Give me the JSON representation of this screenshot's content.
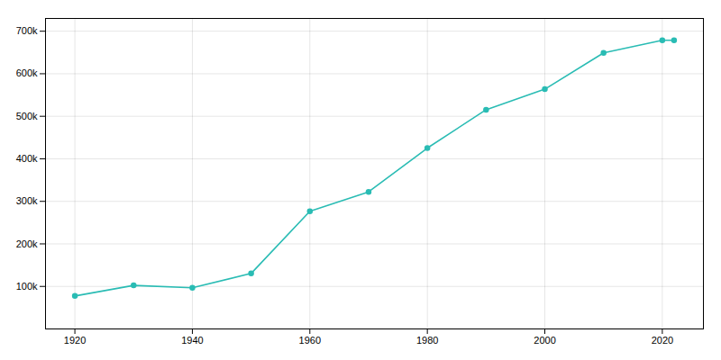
{
  "chart_data": {
    "type": "line",
    "x": [
      1920,
      1930,
      1940,
      1950,
      1960,
      1970,
      1980,
      1990,
      2000,
      2010,
      2020,
      2022
    ],
    "values": [
      77560,
      102421,
      96810,
      130485,
      276687,
      322261,
      425259,
      515342,
      563662,
      649121,
      678815,
      678815
    ],
    "color": "#2abcb4",
    "marker": "circle",
    "xlim": [
      1915,
      2027
    ],
    "ylim": [
      0,
      730000
    ],
    "xticks": [
      1920,
      1940,
      1960,
      1980,
      2000,
      2020
    ],
    "yticks": [
      {
        "value": 100000,
        "label": "100k"
      },
      {
        "value": 200000,
        "label": "200k"
      },
      {
        "value": 300000,
        "label": "300k"
      },
      {
        "value": 400000,
        "label": "400k"
      },
      {
        "value": 500000,
        "label": "500k"
      },
      {
        "value": 600000,
        "label": "600k"
      },
      {
        "value": 700000,
        "label": "700k"
      }
    ],
    "grid": true
  }
}
